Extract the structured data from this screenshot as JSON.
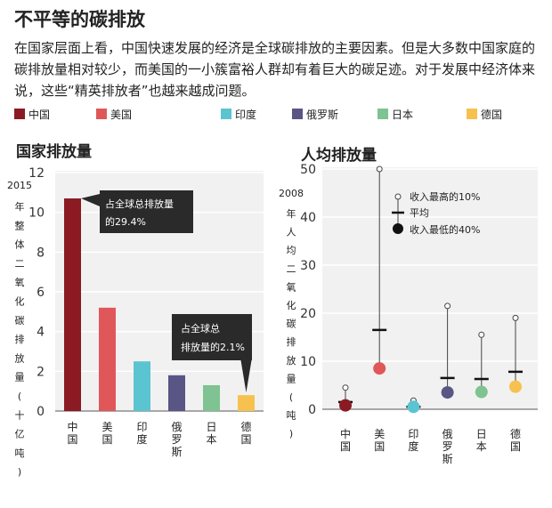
{
  "title": "不平等的碳排放",
  "intro": "在国家层面上看，中国快速发展的经济是全球碳排放的主要因素。但是大多数中国家庭的碳排放量相对较少，而美国的一小簇富裕人群却有着巨大的碳足迹。对于发展中经济体来说，这些“精英排放者”也越来越成问题。",
  "legend": [
    {
      "label": "中国",
      "color": "#8b1a22"
    },
    {
      "label": "美国",
      "color": "#e0575a"
    },
    {
      "label": "印度",
      "color": "#5bc4d1"
    },
    {
      "label": "俄罗斯",
      "color": "#595585"
    },
    {
      "label": "日本",
      "color": "#7ec391"
    },
    {
      "label": "德国",
      "color": "#f6c14e"
    }
  ],
  "chart_data": [
    {
      "type": "bar",
      "title": "国家排放量",
      "ylabel": "2015年整体二氧化碳排放量(十亿吨)",
      "categories": [
        "中国",
        "美国",
        "印度",
        "俄罗斯",
        "日本",
        "德国"
      ],
      "values": [
        10.7,
        5.2,
        2.5,
        1.8,
        1.3,
        0.8
      ],
      "ylim": [
        0,
        12
      ],
      "yticks": [
        0,
        2,
        4,
        6,
        8,
        10,
        12
      ],
      "annotations": [
        {
          "category": "中国",
          "lines": [
            "占全球总排放量",
            "的29.4%"
          ]
        },
        {
          "category": "德国",
          "lines": [
            "占全球总",
            "排放量的2.1%"
          ]
        }
      ],
      "grid": true
    },
    {
      "type": "scatter",
      "title": "人均排放量",
      "ylabel": "2008年人均二氧化碳排放量(吨)",
      "categories": [
        "中国",
        "美国",
        "印度",
        "俄罗斯",
        "日本",
        "德国"
      ],
      "series": [
        {
          "name": "收入最高的10%",
          "values": [
            4.5,
            50,
            1.8,
            21.5,
            15.5,
            19
          ]
        },
        {
          "name": "平均",
          "values": [
            1.5,
            16.5,
            0.5,
            6.5,
            6.3,
            7.8
          ]
        },
        {
          "name": "收入最低的40%",
          "values": [
            0.8,
            8.5,
            0.5,
            3.5,
            3.6,
            4.7
          ]
        }
      ],
      "ylim": [
        0,
        50
      ],
      "yticks": [
        0,
        10,
        20,
        30,
        40,
        50
      ],
      "legend_position": "top-right",
      "grid": true
    }
  ]
}
